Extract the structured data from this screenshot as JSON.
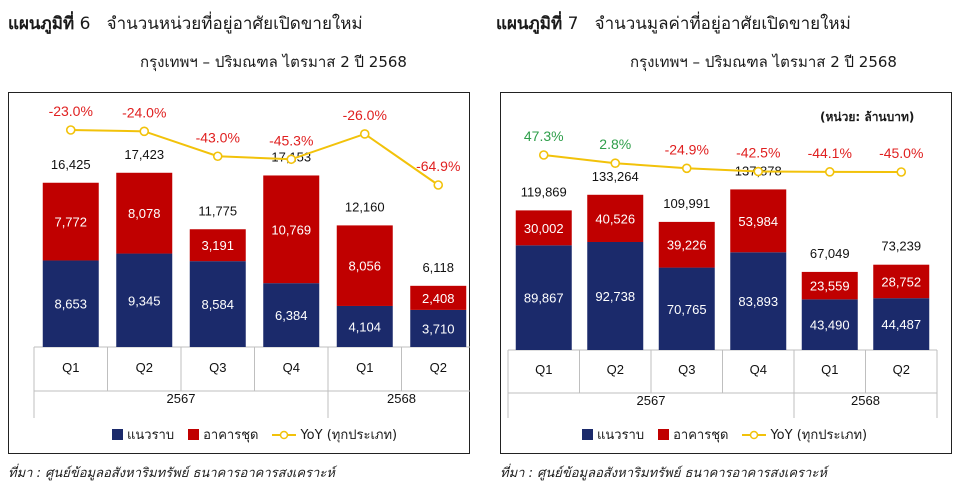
{
  "colors": {
    "low_rise": "#1b2a6b",
    "high_rise": "#c00000",
    "yoy_line": "#f2c20a",
    "yoy_positive": "#2e9e4a",
    "yoy_negative": "#e02020"
  },
  "legend": {
    "low_rise": "แนวราบ",
    "high_rise": "อาคารชุด",
    "yoy": "YoY (ทุกประเภท)"
  },
  "source": "ที่มา : ศูนย์ข้อมูลอสังหาริมทรัพย์ ธนาคารอาคารสงเคราะห์",
  "charts": [
    {
      "figure_label": "แผนภูมิที่",
      "figure_number": "6",
      "title_line1": "จำนวนหน่วยที่อยู่อาศัยเปิดขายใหม่",
      "title_line2": "กรุงเทพฯ – ปริมณฑล ไตรมาส 2 ปี 2568",
      "unit_note": ""
    },
    {
      "figure_label": "แผนภูมิที่",
      "figure_number": "7",
      "title_line1": "จำนวนมูลค่าที่อยู่อาศัยเปิดขายใหม่",
      "title_line2": "กรุงเทพฯ – ปริมณฑล ไตรมาส 2 ปี 2568",
      "unit_note": "(หน่วย: ล้านบาท)"
    }
  ],
  "chart_data": [
    {
      "type": "bar",
      "stacked": true,
      "categories": [
        "Q1",
        "Q2",
        "Q3",
        "Q4",
        "Q1",
        "Q2"
      ],
      "year_groups": [
        {
          "label": "2567",
          "count": 4
        },
        {
          "label": "2568",
          "count": 2
        }
      ],
      "series": [
        {
          "name": "แนวราบ",
          "values": [
            8653,
            9345,
            8584,
            6384,
            4104,
            3710
          ],
          "labels": [
            "8,653",
            "9,345",
            "8,584",
            "6,384",
            "4,104",
            "3,710"
          ]
        },
        {
          "name": "อาคารชุด",
          "values": [
            7772,
            8078,
            3191,
            10769,
            8056,
            2408
          ],
          "labels": [
            "7,772",
            "8,078",
            "3,191",
            "10,769",
            "8,056",
            "2,408"
          ]
        }
      ],
      "totals": [
        16425,
        17423,
        11775,
        17153,
        12160,
        6118
      ],
      "total_labels": [
        "16,425",
        "17,423",
        "11,775",
        "17,153",
        "12,160",
        "6,118"
      ],
      "yoy": {
        "name": "YoY (ทุกประเภท)",
        "values": [
          -23.0,
          -24.0,
          -43.0,
          -45.3,
          -26.0,
          -64.9
        ],
        "labels": [
          "-23.0%",
          "-24.0%",
          "-43.0%",
          "-45.3%",
          "-26.0%",
          "-64.9%"
        ]
      },
      "ylim": [
        0,
        22000
      ],
      "legend_position": "bottom"
    },
    {
      "type": "bar",
      "stacked": true,
      "categories": [
        "Q1",
        "Q2",
        "Q3",
        "Q4",
        "Q1",
        "Q2"
      ],
      "year_groups": [
        {
          "label": "2567",
          "count": 4
        },
        {
          "label": "2568",
          "count": 2
        }
      ],
      "series": [
        {
          "name": "แนวราบ",
          "values": [
            89867,
            92738,
            70765,
            83893,
            43490,
            44487
          ],
          "labels": [
            "89,867",
            "92,738",
            "70,765",
            "83,893",
            "43,490",
            "44,487"
          ]
        },
        {
          "name": "อาคารชุด",
          "values": [
            30002,
            40526,
            39226,
            53984,
            23559,
            28752
          ],
          "labels": [
            "30,002",
            "40,526",
            "39,226",
            "53,984",
            "23,559",
            "28,752"
          ]
        }
      ],
      "totals": [
        119869,
        133264,
        109991,
        137878,
        67049,
        73239
      ],
      "total_labels": [
        "119,869",
        "133,264",
        "109,991",
        "137,878",
        "67,049",
        "73,239"
      ],
      "yoy": {
        "name": "YoY (ทุกประเภท)",
        "values": [
          47.3,
          2.8,
          -24.9,
          -42.5,
          -44.1,
          -45.0
        ],
        "labels": [
          "47.3%",
          "2.8%",
          "-24.9%",
          "-42.5%",
          "-44.1%",
          "-45.0%"
        ]
      },
      "ylim": [
        0,
        170000
      ],
      "legend_position": "bottom"
    }
  ]
}
